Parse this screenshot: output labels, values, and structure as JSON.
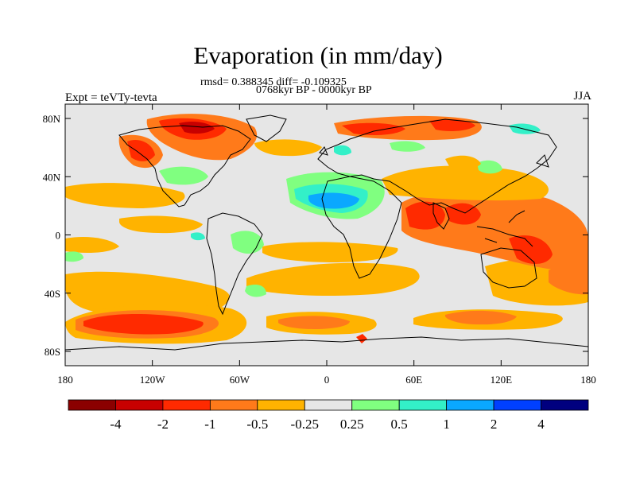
{
  "title": "Evaporation (in mm/day)",
  "stats_line": "rmsd= 0.388345 diff= -0.109325",
  "period_line": "0768kyr BP - 0000kyr BP",
  "experiment_label": "Expt = teVTy-tevta",
  "season_label": "JJA",
  "map_axes": {
    "lat_ticks": [
      "80N",
      "40N",
      "0",
      "40S",
      "80S"
    ],
    "lon_ticks": [
      "180",
      "120W",
      "60W",
      "0",
      "60E",
      "120E",
      "180"
    ]
  },
  "colorbar": {
    "labels": [
      "-4",
      "-2",
      "-1",
      "-0.5",
      "-0.25",
      "0.25",
      "0.5",
      "1",
      "2",
      "4"
    ],
    "colors": [
      "#8b0000",
      "#c80000",
      "#ff2a00",
      "#ff7a1a",
      "#ffb300",
      "#e6e6e6",
      "#80ff80",
      "#33f0c8",
      "#0aa8ff",
      "#0040ff",
      "#00007f"
    ]
  },
  "style": {
    "background_color": "#e6e6e6",
    "land_outline_color": "#000000"
  }
}
